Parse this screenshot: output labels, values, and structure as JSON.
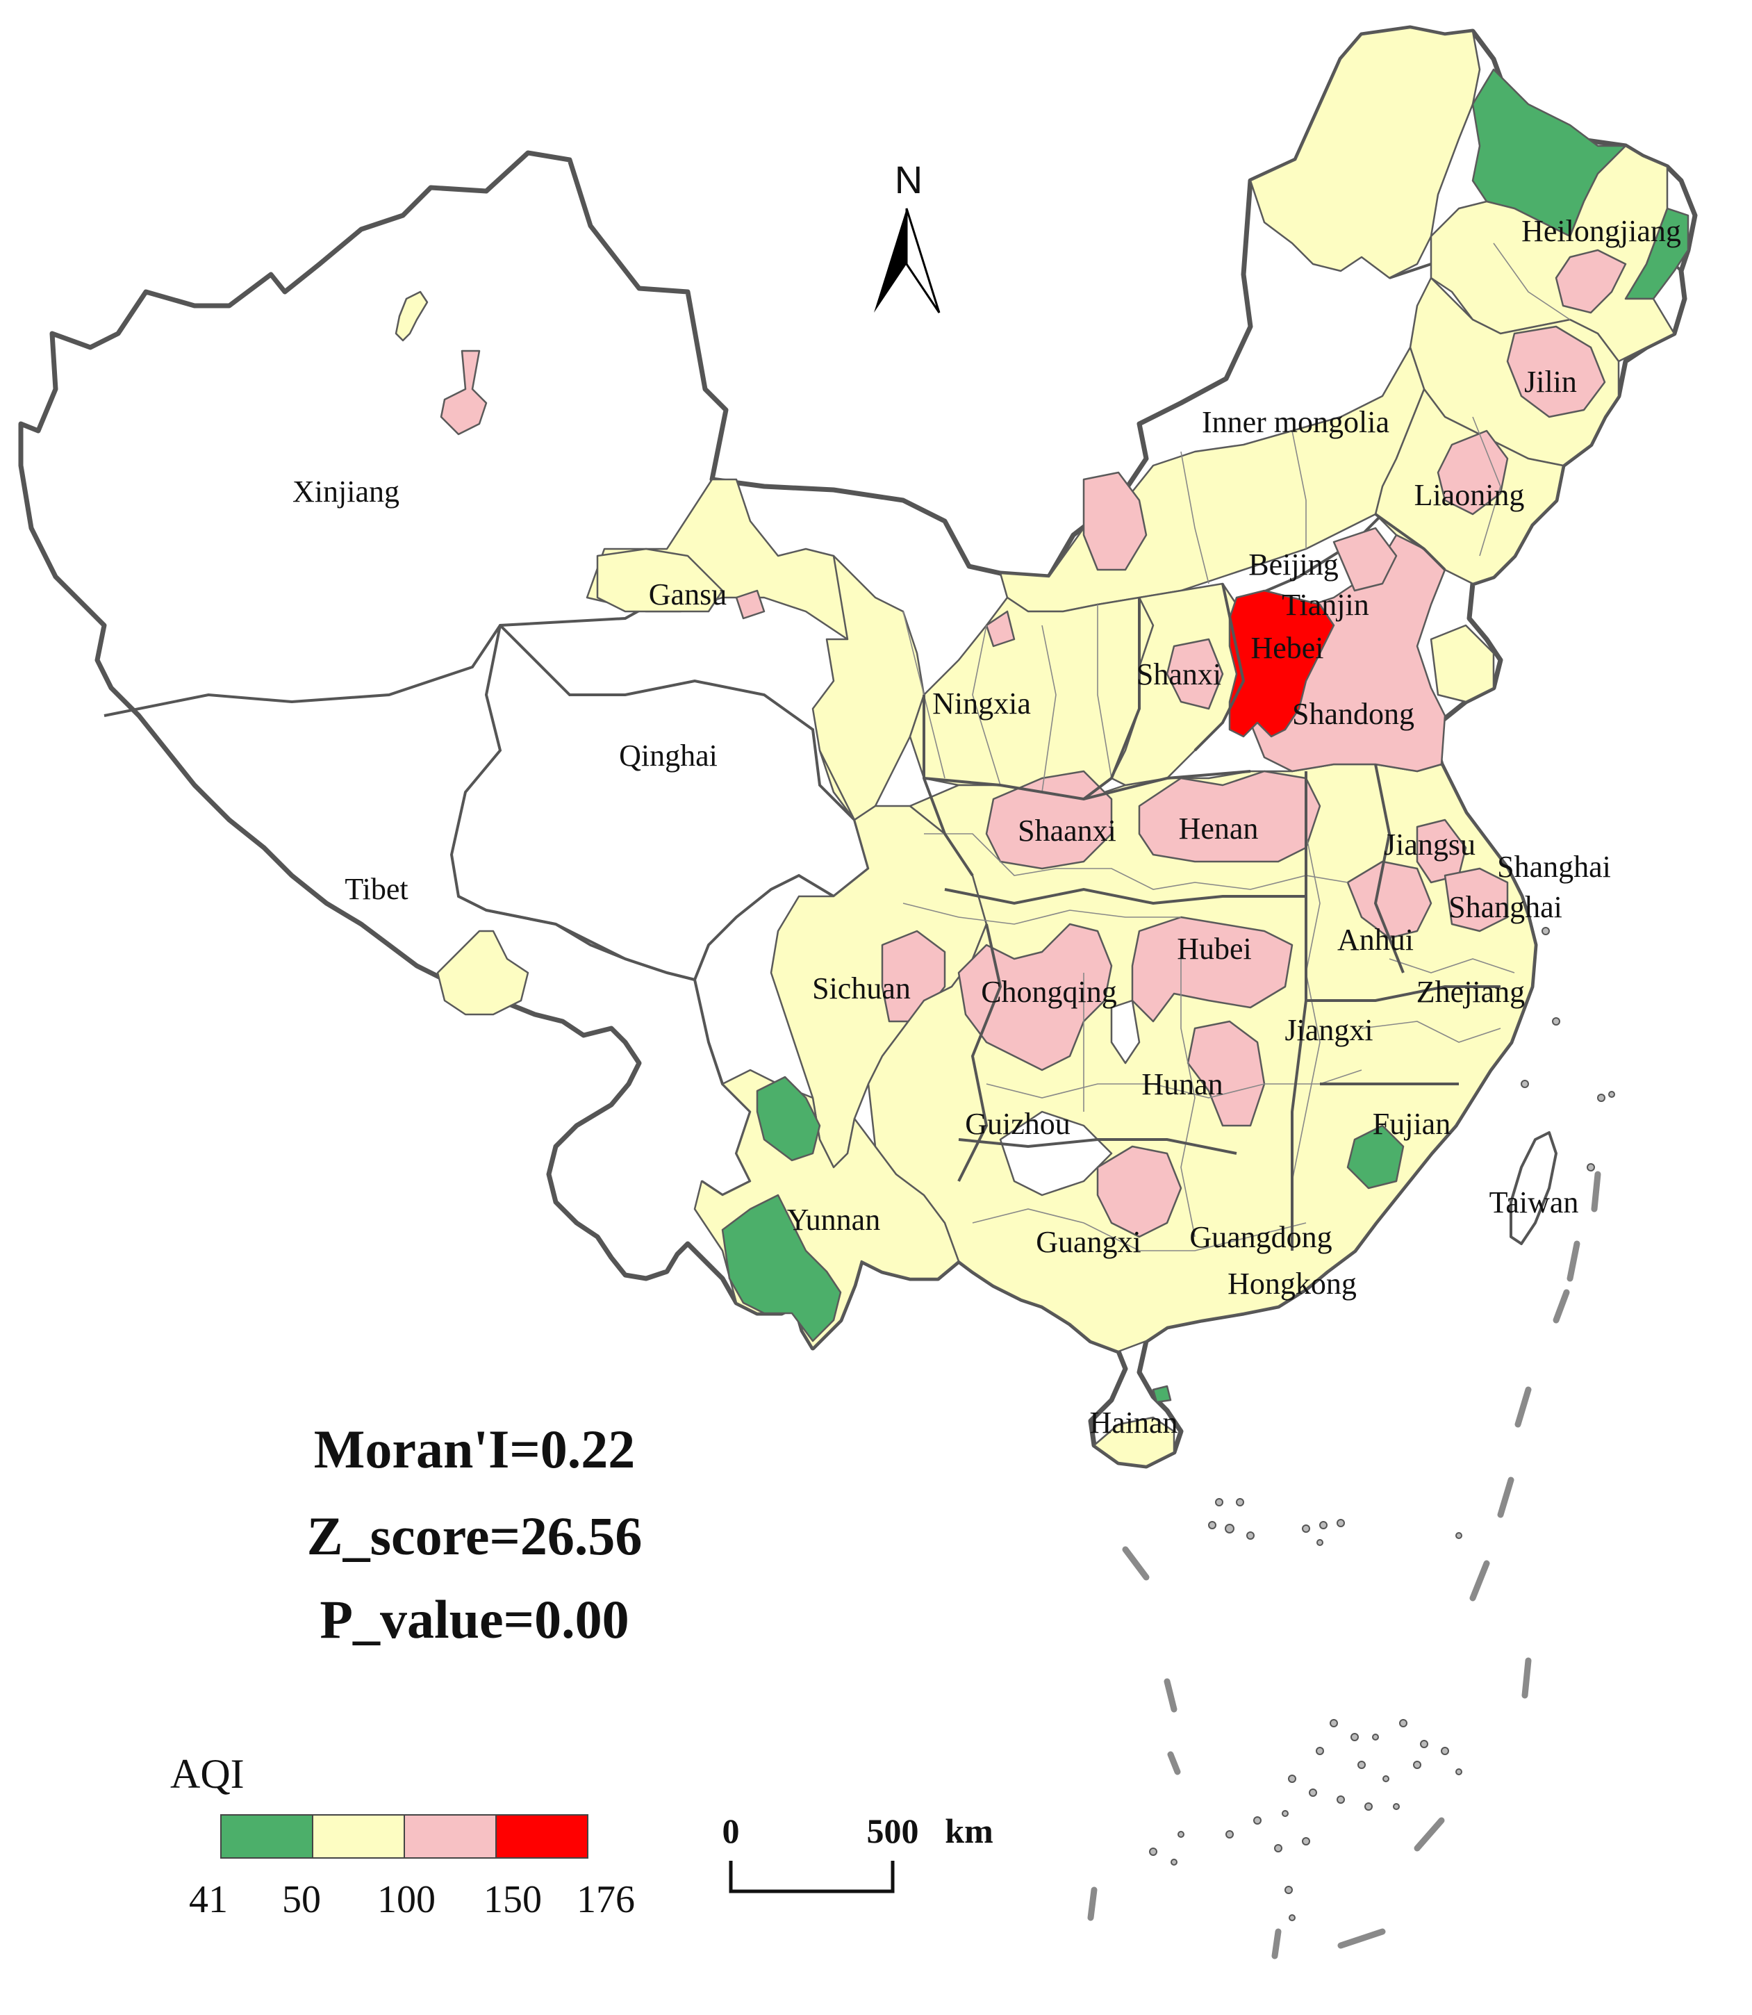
{
  "map": {
    "labels": {
      "xinjiang": "Xinjiang",
      "tibet": "Tibet",
      "qinghai": "Qinghai",
      "gansu": "Gansu",
      "inner_mongolia": "Inner mongolia",
      "heilongjiang": "Heilongjiang",
      "jilin": "Jilin",
      "liaoning": "Liaoning",
      "beijing": "Beijing",
      "tianjin": "Tianjin",
      "hebei": "Hebei",
      "shanxi": "Shanxi",
      "shandong": "Shandong",
      "ningxia": "Ningxia",
      "shaanxi": "Shaanxi",
      "henan": "Henan",
      "jiangsu": "Jiangsu",
      "shanghai_1": "Shanghai",
      "shanghai_2": "Shanghai",
      "anhui": "Anhui",
      "hubei": "Hubei",
      "sichuan": "Sichuan",
      "chongqing": "Chongqing",
      "zhejiang": "Zhejiang",
      "jiangxi": "Jiangxi",
      "hunan": "Hunan",
      "guizhou": "Guizhou",
      "fujian": "Fujian",
      "taiwan": "Taiwan",
      "yunnan": "Yunnan",
      "guangxi": "Guangxi",
      "guangdong": "Guangdong",
      "hongkong": "Hongkong",
      "hainan": "Hainan"
    },
    "north_arrow_label": "N"
  },
  "stats": {
    "moran": "Moran'I=0.22",
    "z_score": "Z_score=26.56",
    "p_value": "P_value=0.00"
  },
  "legend": {
    "title": "AQI",
    "classes": [
      {
        "min": 41,
        "max": 50,
        "color": "#4caf6a"
      },
      {
        "min": 50,
        "max": 100,
        "color": "#fdfdc2"
      },
      {
        "min": 100,
        "max": 150,
        "color": "#f7c1c4"
      },
      {
        "min": 150,
        "max": 176,
        "color": "#ff0000"
      }
    ],
    "ticks": [
      "41",
      "50",
      "100",
      "150",
      "176"
    ]
  },
  "scale_bar": {
    "start_label": "0",
    "end_label": "500",
    "unit": "km"
  },
  "colors": {
    "no_data": "#ffffff",
    "good": "#4caf6a",
    "moderate": "#fdfdc2",
    "unhealthy_sensitive": "#f7c1c4",
    "unhealthy": "#ff0000",
    "border": "#555555"
  }
}
